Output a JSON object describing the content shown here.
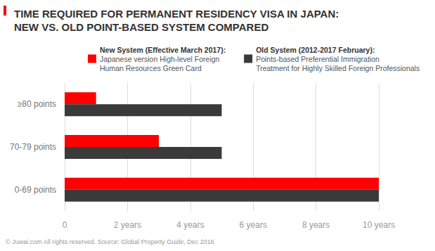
{
  "chart_data": {
    "type": "bar",
    "orientation": "horizontal",
    "title": [
      "TIME REQUIRED FOR PERMANENT RESIDENCY VISA IN JAPAN:",
      "NEW VS. OLD POINT-BASED SYSTEM COMPARED"
    ],
    "source": "© Juwai.com All rights reserved. Source: Global Property Guide, Dec 2016",
    "categories": [
      "≥80 points",
      "70-79 points",
      "0-69 points"
    ],
    "series": [
      {
        "name": "New System (Effective March 2017):",
        "description": [
          "Japanese version High-level Foreign",
          "Human Resources Green Card"
        ],
        "color": "#ff0000",
        "values": [
          1,
          3,
          10
        ]
      },
      {
        "name": "Old System (2012-2017 February):",
        "description": [
          "Points-based Preferential Immigration",
          "Treatment for Highly Skilled Foreign Professionals"
        ],
        "color": "#3a3a3a",
        "values": [
          5,
          5,
          10
        ]
      }
    ],
    "xlim": [
      0,
      10
    ],
    "xticks": [
      0,
      {
        "value": 2,
        "label": "2 years"
      },
      {
        "value": 4,
        "label": "4 years"
      },
      {
        "value": 6,
        "label": "6 years"
      },
      {
        "value": 8,
        "label": "8 years"
      },
      {
        "value": 10,
        "label": "10 years"
      }
    ],
    "grid": true,
    "legend": "top"
  }
}
